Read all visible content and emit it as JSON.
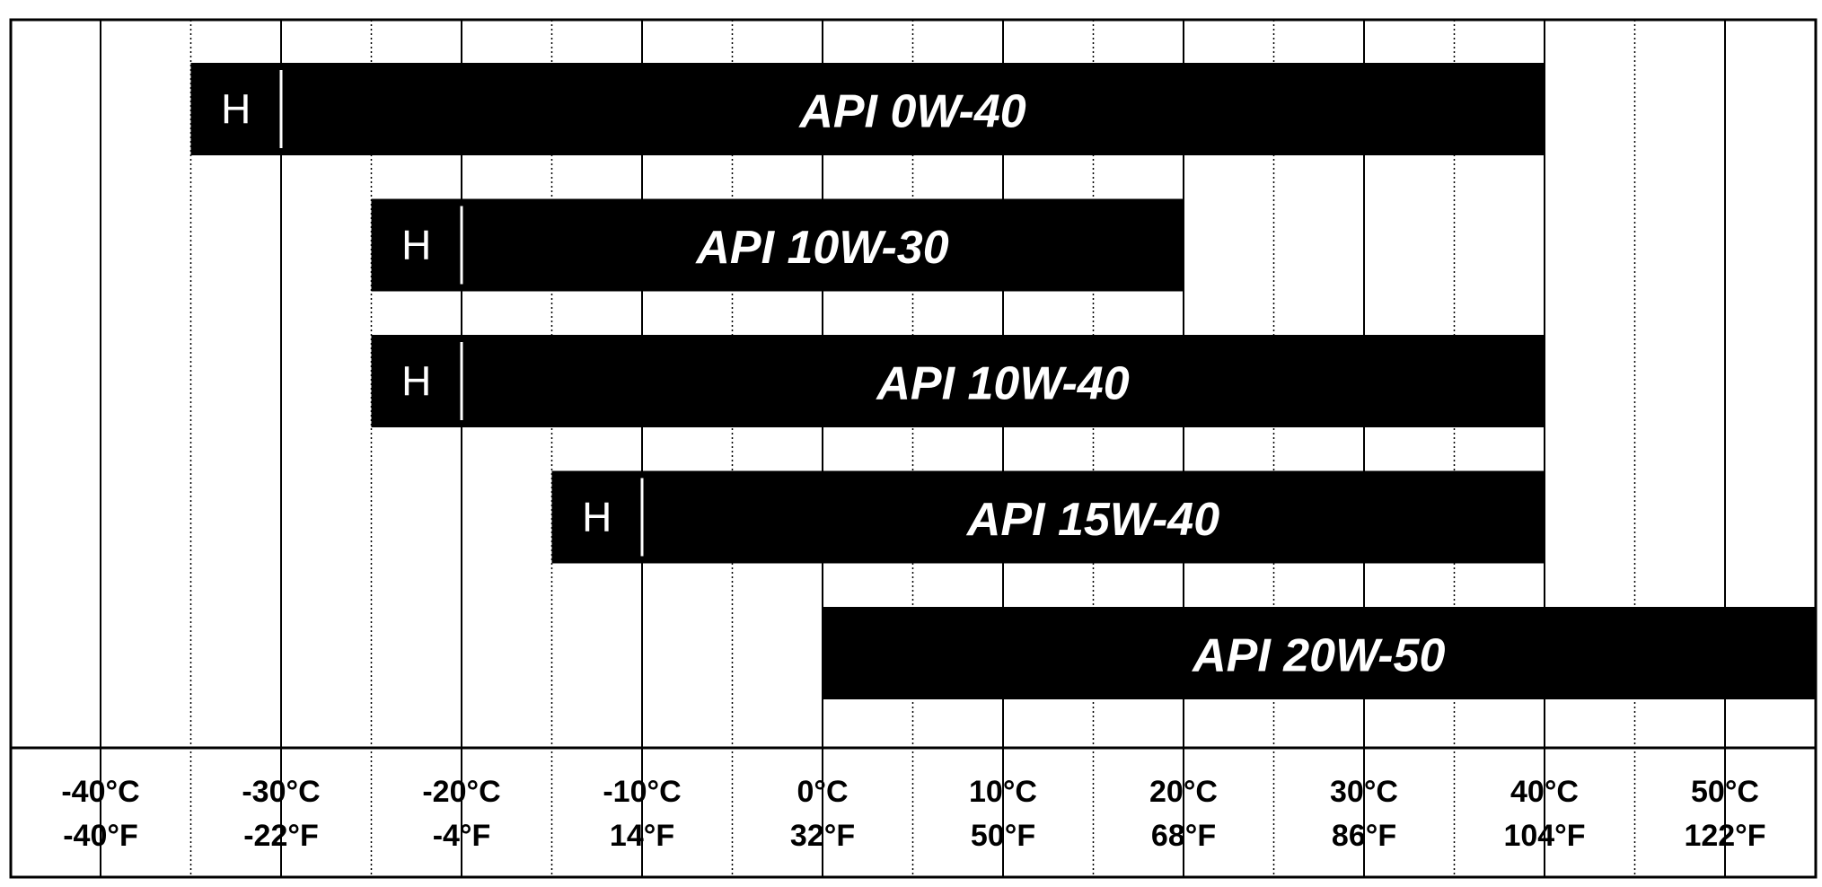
{
  "chart_data": {
    "type": "bar",
    "orientation": "horizontal-range",
    "x_unit": "°C",
    "xlim": [
      -45,
      55
    ],
    "major_ticks": [
      -40,
      -30,
      -20,
      -10,
      0,
      10,
      20,
      30,
      40,
      50
    ],
    "minor_ticks": [
      -35,
      -25,
      -15,
      -5,
      5,
      15,
      25,
      35,
      45
    ],
    "tick_labels_c": [
      "-40°C",
      "-30°C",
      "-20°C",
      "-10°C",
      "0°C",
      "10°C",
      "20°C",
      "30°C",
      "40°C",
      "50°C"
    ],
    "tick_labels_f": [
      "-40°F",
      "-22°F",
      "-4°F",
      "14°F",
      "32°F",
      "50°F",
      "68°F",
      "86°F",
      "104°F",
      "122°F"
    ],
    "series": [
      {
        "label": "API 0W-40",
        "start": -35,
        "end": 40,
        "h_end": -30,
        "h_label": "H"
      },
      {
        "label": "API 10W-30",
        "start": -25,
        "end": 20,
        "h_end": -20,
        "h_label": "H"
      },
      {
        "label": "API 10W-40",
        "start": -25,
        "end": 40,
        "h_end": -20,
        "h_label": "H"
      },
      {
        "label": "API 15W-40",
        "start": -15,
        "end": 40,
        "h_end": -10,
        "h_label": "H"
      },
      {
        "label": "API 20W-50",
        "start": 0,
        "end": 55,
        "h_end": null,
        "h_label": ""
      }
    ],
    "grid": true,
    "bar_color": "#000000",
    "background": "#ffffff"
  }
}
